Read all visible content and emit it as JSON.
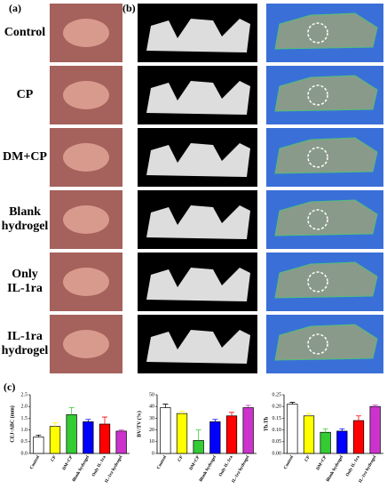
{
  "panels": {
    "a": "(a)",
    "b": "(b)",
    "c": "(c)"
  },
  "rows": [
    {
      "label": [
        "Control"
      ]
    },
    {
      "label": [
        "CP"
      ]
    },
    {
      "label": [
        "DM+CP"
      ]
    },
    {
      "label": [
        "Blank",
        "hydrogel"
      ]
    },
    {
      "label": [
        "Only",
        "IL-1ra"
      ]
    },
    {
      "label": [
        "IL-1ra",
        "hydrogel"
      ]
    }
  ],
  "chart_data": [
    {
      "type": "bar",
      "y_label": "CEJ-ABC (mm)",
      "categories": [
        "Control",
        "CP",
        "DM+CP",
        "Blank hydrogel",
        "Only IL-1ra",
        "IL-1ra hydrogel"
      ],
      "values": [
        0.7,
        1.15,
        1.65,
        1.35,
        1.25,
        0.95
      ],
      "errors": [
        0.08,
        0.15,
        0.3,
        0.1,
        0.3,
        0.05
      ],
      "colors": [
        "#ffffff",
        "#ffff00",
        "#33cc33",
        "#0000ff",
        "#ff0000",
        "#cc33cc"
      ],
      "ylim": [
        0,
        2.5
      ],
      "yticks": [
        {
          "value": 0,
          "label": "0.0"
        },
        {
          "value": 0.5,
          "label": "0.5"
        },
        {
          "value": 1,
          "label": "1.0"
        },
        {
          "value": 1.5,
          "label": "1.5"
        },
        {
          "value": 2,
          "label": "2.0"
        },
        {
          "value": 2.5,
          "label": "2.5"
        }
      ]
    },
    {
      "type": "bar",
      "y_label": "BV/TV (%)",
      "categories": [
        "Control",
        "CP",
        "DM+CP",
        "Blank hydrogel",
        "Only IL-1ra",
        "IL-1ra hydrogel"
      ],
      "values": [
        39,
        34,
        11,
        27,
        32,
        39
      ],
      "errors": [
        3,
        2,
        9,
        2,
        3,
        2
      ],
      "colors": [
        "#ffffff",
        "#ffff00",
        "#33cc33",
        "#0000ff",
        "#ff0000",
        "#cc33cc"
      ],
      "ylim": [
        0,
        50
      ],
      "yticks": [
        0,
        10,
        20,
        30,
        40,
        50
      ]
    },
    {
      "type": "bar",
      "y_label": "Tb.Th",
      "categories": [
        "Control",
        "CP",
        "DM+CP",
        "Blank hydrogel",
        "Only IL-1ra",
        "IL-1ra hydrogel"
      ],
      "values": [
        0.21,
        0.16,
        0.09,
        0.095,
        0.14,
        0.2
      ],
      "errors": [
        0.008,
        0.01,
        0.015,
        0.01,
        0.02,
        0.006
      ],
      "colors": [
        "#ffffff",
        "#ffff00",
        "#33cc33",
        "#0000ff",
        "#ff0000",
        "#cc33cc"
      ],
      "ylim": [
        0,
        0.25
      ],
      "yticks": [
        {
          "value": 0,
          "label": "0.00"
        },
        {
          "value": 0.05,
          "label": "0.05"
        },
        {
          "value": 0.1,
          "label": "0.10"
        },
        {
          "value": 0.15,
          "label": "0.15"
        },
        {
          "value": 0.2,
          "label": "0.20"
        },
        {
          "value": 0.25,
          "label": "0.25"
        }
      ]
    }
  ]
}
